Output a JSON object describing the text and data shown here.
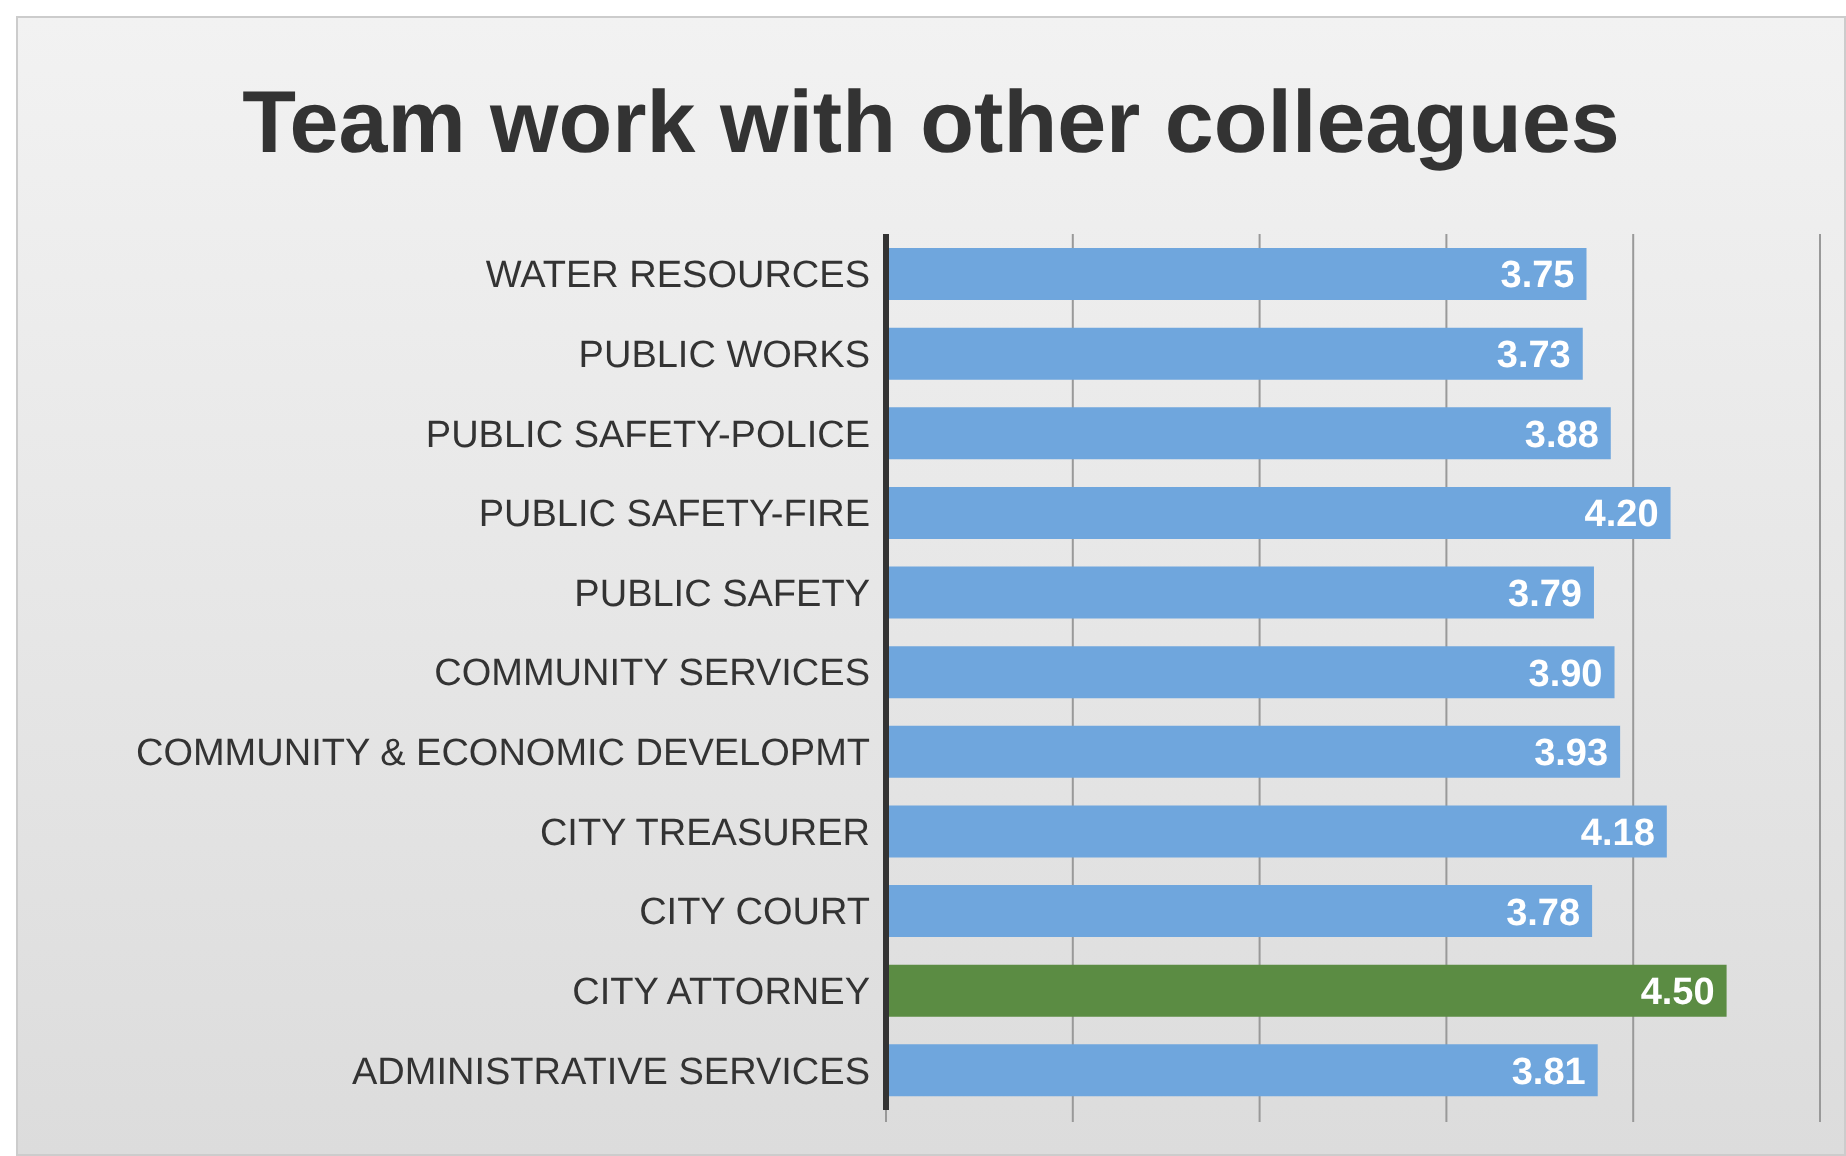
{
  "chart_data": {
    "type": "bar",
    "orientation": "horizontal",
    "title": "Team work with other colleagues",
    "categories": [
      "WATER RESOURCES",
      "PUBLIC WORKS",
      "PUBLIC SAFETY-POLICE",
      "PUBLIC SAFETY-FIRE",
      "PUBLIC SAFETY",
      "COMMUNITY SERVICES",
      "COMMUNITY & ECONOMIC DEVELOPMT",
      "CITY TREASURER",
      "CITY COURT",
      "CITY ATTORNEY",
      "ADMINISTRATIVE SERVICES"
    ],
    "values": [
      3.75,
      3.73,
      3.88,
      4.2,
      3.79,
      3.9,
      3.93,
      4.18,
      3.78,
      4.5,
      3.81
    ],
    "value_labels": [
      "3.75",
      "3.73",
      "3.88",
      "4.20",
      "3.79",
      "3.90",
      "3.93",
      "4.18",
      "3.78",
      "4.50",
      "3.81"
    ],
    "colors": [
      "#6fa6dd",
      "#6fa6dd",
      "#6fa6dd",
      "#6fa6dd",
      "#6fa6dd",
      "#6fa6dd",
      "#6fa6dd",
      "#6fa6dd",
      "#6fa6dd",
      "#5b8c43",
      "#6fa6dd"
    ],
    "xlim": [
      0,
      5
    ],
    "xticks": [
      {
        "value": 0,
        "label": null
      },
      {
        "value": 1,
        "label": null
      },
      {
        "value": 2,
        "label": null
      },
      {
        "value": 3,
        "label": null
      },
      {
        "value": 4,
        "label": null
      },
      {
        "value": 5,
        "label": null
      }
    ],
    "tick_labels": "y",
    "grid": "x",
    "legend": false
  }
}
